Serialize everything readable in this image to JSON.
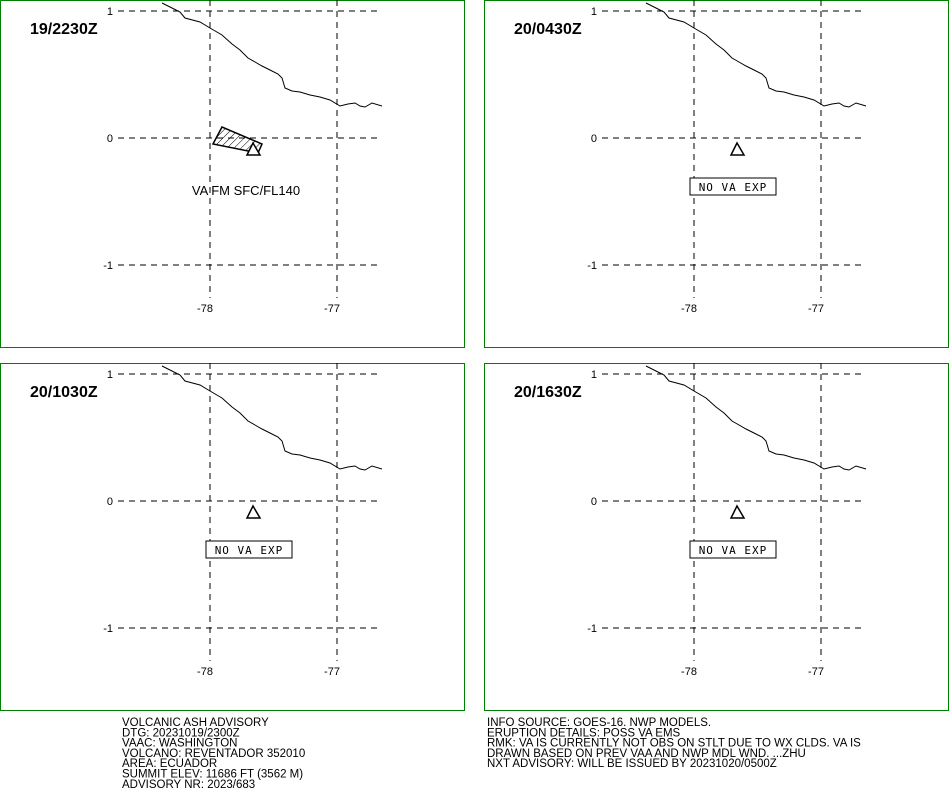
{
  "panels": [
    {
      "time": "19/2230Z",
      "yticks": [
        "1",
        "0",
        "-1"
      ],
      "xticks": [
        "-78",
        "-77"
      ],
      "annotation": "VA FM SFC/FL140"
    },
    {
      "time": "20/0430Z",
      "yticks": [
        "1",
        "0",
        "-1"
      ],
      "xticks": [
        "-78",
        "-77"
      ],
      "annotation": "NO VA EXP"
    },
    {
      "time": "20/1030Z",
      "yticks": [
        "1",
        "0",
        "-1"
      ],
      "xticks": [
        "-78",
        "-77"
      ],
      "annotation": "NO VA EXP"
    },
    {
      "time": "20/1630Z",
      "yticks": [
        "1",
        "0",
        "-1"
      ],
      "xticks": [
        "-78",
        "-77"
      ],
      "annotation": "NO VA EXP"
    }
  ],
  "advisory_left": [
    "VOLCANIC ASH ADVISORY",
    "DTG: 20231019/2300Z",
    "VAAC: WASHINGTON",
    "VOLCANO: REVENTADOR 352010",
    "AREA: ECUADOR",
    "SUMMIT ELEV: 11686 FT (3562 M)",
    "ADVISORY NR: 2023/683"
  ],
  "advisory_right": [
    "INFO SOURCE: GOES-16. NWP MODELS.",
    "ERUPTION DETAILS: POSS VA EMS",
    "RMK: VA IS CURRENTLY NOT OBS ON STLT DUE TO WX CLDS. VA IS",
    "DRAWN BASED ON PREV VAA AND NWP MDL WND. ...ZHU",
    "NXT ADVISORY: WILL BE ISSUED BY 20231020/0500Z"
  ]
}
